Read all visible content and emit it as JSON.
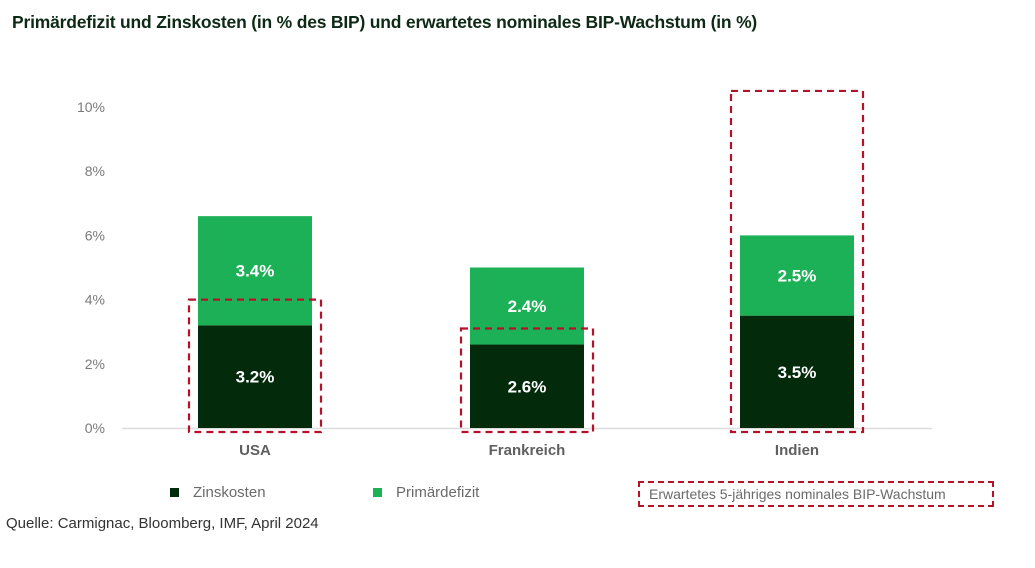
{
  "chart_data": {
    "type": "bar",
    "stacked": true,
    "title": "Primärdefizit und Zinskosten (in % des BIP) und erwartetes nominales BIP-Wachstum (in %)",
    "categories": [
      "USA",
      "Frankreich",
      "Indien"
    ],
    "series": [
      {
        "name": "Zinskosten",
        "color": "#022a0b",
        "values": [
          3.2,
          2.6,
          3.5
        ],
        "labels": [
          "3.2%",
          "2.6%",
          "3.5%"
        ]
      },
      {
        "name": "Primärdefizit",
        "color": "#1db157",
        "values": [
          3.4,
          2.4,
          2.5
        ],
        "labels": [
          "3.4%",
          "2.4%",
          "2.5%"
        ]
      }
    ],
    "overlay": {
      "name": "Erwartetes 5-jähriges nominales BIP-Wachstum",
      "style": "dashed-outline",
      "color": "#b5122a",
      "values": [
        4.0,
        3.1,
        10.5
      ]
    },
    "yticks": [
      "0%",
      "2%",
      "4%",
      "6%",
      "8%",
      "10%"
    ],
    "ytick_values": [
      0,
      2,
      4,
      6,
      8,
      10
    ],
    "ylim": [
      0,
      10.5
    ],
    "xlabel": "",
    "ylabel": "",
    "grid": false,
    "legend_position": "bottom"
  },
  "legend": {
    "items": [
      {
        "label": "Zinskosten",
        "color": "#022a0b"
      },
      {
        "label": "Primärdefizit",
        "color": "#1db157"
      }
    ],
    "overlay_label": "Erwartetes 5-jähriges nominales BIP-Wachstum"
  },
  "source": "Quelle: Carmignac, Bloomberg, IMF, April 2024"
}
